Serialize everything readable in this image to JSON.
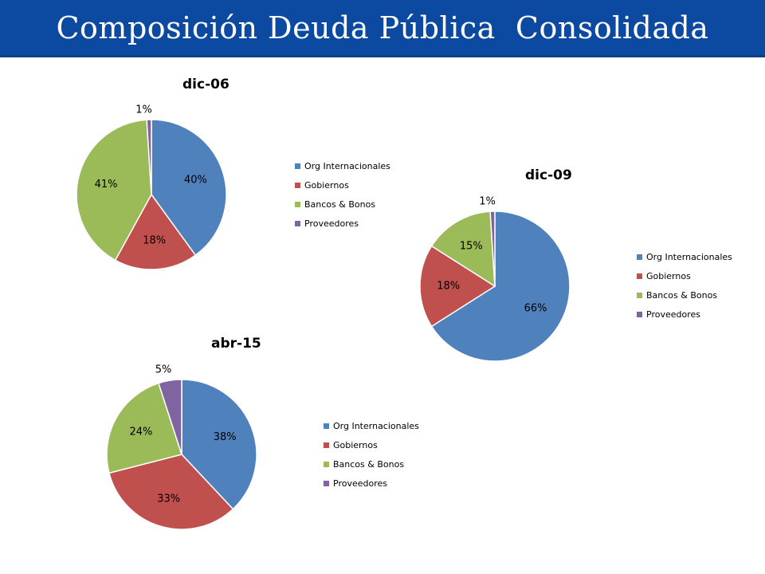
{
  "header": {
    "title": "Composición Deuda Pública  Consolidada",
    "background": "#0b4aa0"
  },
  "chart_data": [
    {
      "type": "pie",
      "title": "dic-06",
      "categories": [
        "Org Internacionales",
        "Gobiernos",
        "Bancos & Bonos",
        "Proveedores"
      ],
      "values": [
        40,
        18,
        41,
        1
      ],
      "data_labels": [
        "40%",
        "18%",
        "41%",
        "1%"
      ],
      "colors": [
        "#4f81bd",
        "#c0504d",
        "#9bbb59",
        "#8064a2"
      ],
      "legend_position": "right"
    },
    {
      "type": "pie",
      "title": "dic-09",
      "categories": [
        "Org Internacionales",
        "Gobiernos",
        "Bancos & Bonos",
        "Proveedores"
      ],
      "values": [
        66,
        18,
        15,
        1
      ],
      "data_labels": [
        "66%",
        "18%",
        "15%",
        "1%"
      ],
      "colors": [
        "#4f81bd",
        "#c0504d",
        "#9bbb59",
        "#8064a2"
      ],
      "legend_position": "right"
    },
    {
      "type": "pie",
      "title": "abr-15",
      "categories": [
        "Org Internacionales",
        "Gobiernos",
        "Bancos & Bonos",
        "Proveedores"
      ],
      "values": [
        38,
        33,
        24,
        5
      ],
      "data_labels": [
        "38%",
        "33%",
        "24%",
        "5%"
      ],
      "colors": [
        "#4f81bd",
        "#c0504d",
        "#9bbb59",
        "#8064a2"
      ],
      "legend_position": "right"
    }
  ]
}
